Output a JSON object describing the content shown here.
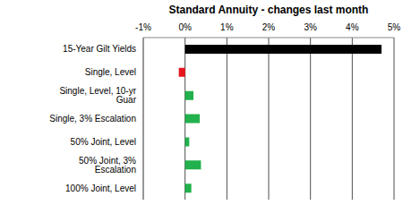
{
  "chart_data": {
    "type": "bar",
    "title": "Standard Annuity - changes last month",
    "orientation": "horizontal",
    "grid": true,
    "categories": [
      "15-Year Gilt Yields",
      "Single, Level",
      "Single, Level, 10-yr Guar",
      "Single, 3% Escalation",
      "50% Joint, Level",
      "50% Joint, 3% Escalation",
      "100% Joint, Level"
    ],
    "values": [
      4.7,
      -0.15,
      0.2,
      0.35,
      0.1,
      0.38,
      0.15
    ],
    "colors": [
      "#000000",
      "#e8141e",
      "#22b14c",
      "#22b14c",
      "#22b14c",
      "#22b14c",
      "#22b14c"
    ],
    "xlim": [
      -1,
      5
    ],
    "xticks": [
      {
        "value": -1,
        "label": "-1%"
      },
      {
        "value": 0,
        "label": "0%"
      },
      {
        "value": 1,
        "label": "1%"
      },
      {
        "value": 2,
        "label": "2%"
      },
      {
        "value": 3,
        "label": "3%"
      },
      {
        "value": 4,
        "label": "4%"
      },
      {
        "value": 5,
        "label": "5%"
      }
    ]
  }
}
